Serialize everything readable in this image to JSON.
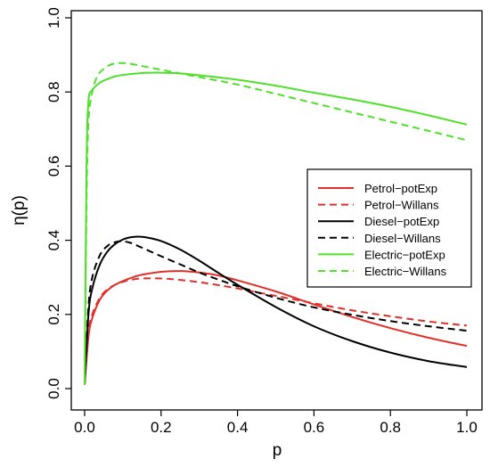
{
  "chart_data": {
    "type": "line",
    "title": "",
    "xlabel": "p",
    "ylabel": "η(p)",
    "xlim": [
      0,
      1
    ],
    "ylim": [
      0,
      1
    ],
    "xticks": [
      0.0,
      0.2,
      0.4,
      0.6,
      0.8,
      1.0
    ],
    "yticks": [
      0.0,
      0.2,
      0.4,
      0.6,
      0.8,
      1.0
    ],
    "x_tick_labels": [
      "0.0",
      "0.2",
      "0.4",
      "0.6",
      "0.8",
      "1.0"
    ],
    "y_tick_labels": [
      "0.0",
      "0.2",
      "0.4",
      "0.6",
      "0.8",
      "1.0"
    ],
    "grid": false,
    "legend_position": "right",
    "series": [
      {
        "name": "Petrol−potExp",
        "color": "#e0302a",
        "dash": "solid",
        "x": [
          0.0,
          0.01,
          0.02,
          0.04,
          0.06,
          0.08,
          0.1,
          0.12,
          0.15,
          0.2,
          0.25,
          0.3,
          0.35,
          0.4,
          0.5,
          0.6,
          0.7,
          0.8,
          0.9,
          1.0
        ],
        "y": [
          0.01,
          0.14,
          0.19,
          0.24,
          0.265,
          0.28,
          0.29,
          0.298,
          0.307,
          0.315,
          0.317,
          0.313,
          0.305,
          0.292,
          0.262,
          0.227,
          0.193,
          0.163,
          0.137,
          0.115
        ]
      },
      {
        "name": "Petrol−Willans",
        "color": "#e0302a",
        "dash": "dashed",
        "x": [
          0.0,
          0.01,
          0.02,
          0.04,
          0.06,
          0.08,
          0.1,
          0.12,
          0.15,
          0.2,
          0.25,
          0.3,
          0.35,
          0.4,
          0.5,
          0.6,
          0.7,
          0.8,
          0.9,
          1.0
        ],
        "y": [
          0.01,
          0.15,
          0.2,
          0.245,
          0.268,
          0.28,
          0.288,
          0.293,
          0.297,
          0.297,
          0.293,
          0.287,
          0.279,
          0.27,
          0.25,
          0.23,
          0.211,
          0.195,
          0.181,
          0.17
        ]
      },
      {
        "name": "Diesel−potExp",
        "color": "#000000",
        "dash": "solid",
        "x": [
          0.0,
          0.01,
          0.02,
          0.04,
          0.06,
          0.08,
          0.1,
          0.12,
          0.14,
          0.16,
          0.2,
          0.25,
          0.3,
          0.35,
          0.4,
          0.5,
          0.6,
          0.7,
          0.8,
          0.9,
          1.0
        ],
        "y": [
          0.01,
          0.2,
          0.27,
          0.335,
          0.37,
          0.39,
          0.402,
          0.408,
          0.41,
          0.408,
          0.398,
          0.375,
          0.345,
          0.312,
          0.28,
          0.22,
          0.168,
          0.128,
          0.097,
          0.074,
          0.058
        ]
      },
      {
        "name": "Diesel−Willans",
        "color": "#000000",
        "dash": "dashed",
        "x": [
          0.0,
          0.01,
          0.02,
          0.04,
          0.06,
          0.08,
          0.1,
          0.12,
          0.15,
          0.2,
          0.25,
          0.3,
          0.35,
          0.4,
          0.5,
          0.6,
          0.7,
          0.8,
          0.9,
          1.0
        ],
        "y": [
          0.01,
          0.22,
          0.3,
          0.36,
          0.385,
          0.395,
          0.397,
          0.393,
          0.38,
          0.357,
          0.335,
          0.313,
          0.294,
          0.276,
          0.245,
          0.219,
          0.199,
          0.182,
          0.168,
          0.156
        ]
      },
      {
        "name": "Electric−potExp",
        "color": "#4fe02a",
        "dash": "solid",
        "x": [
          0.0,
          0.005,
          0.01,
          0.02,
          0.04,
          0.06,
          0.08,
          0.1,
          0.15,
          0.2,
          0.25,
          0.3,
          0.4,
          0.5,
          0.6,
          0.7,
          0.8,
          0.9,
          1.0
        ],
        "y": [
          0.01,
          0.6,
          0.775,
          0.805,
          0.825,
          0.835,
          0.842,
          0.846,
          0.851,
          0.852,
          0.85,
          0.845,
          0.833,
          0.817,
          0.798,
          0.78,
          0.76,
          0.737,
          0.712
        ]
      },
      {
        "name": "Electric−Willans",
        "color": "#4fe02a",
        "dash": "dashed",
        "x": [
          0.0,
          0.005,
          0.01,
          0.02,
          0.03,
          0.04,
          0.06,
          0.08,
          0.1,
          0.12,
          0.15,
          0.2,
          0.3,
          0.4,
          0.5,
          0.6,
          0.7,
          0.8,
          0.9,
          1.0
        ],
        "y": [
          0.01,
          0.5,
          0.72,
          0.8,
          0.835,
          0.853,
          0.87,
          0.877,
          0.878,
          0.876,
          0.87,
          0.86,
          0.84,
          0.82,
          0.795,
          0.77,
          0.745,
          0.72,
          0.695,
          0.67
        ]
      }
    ]
  }
}
